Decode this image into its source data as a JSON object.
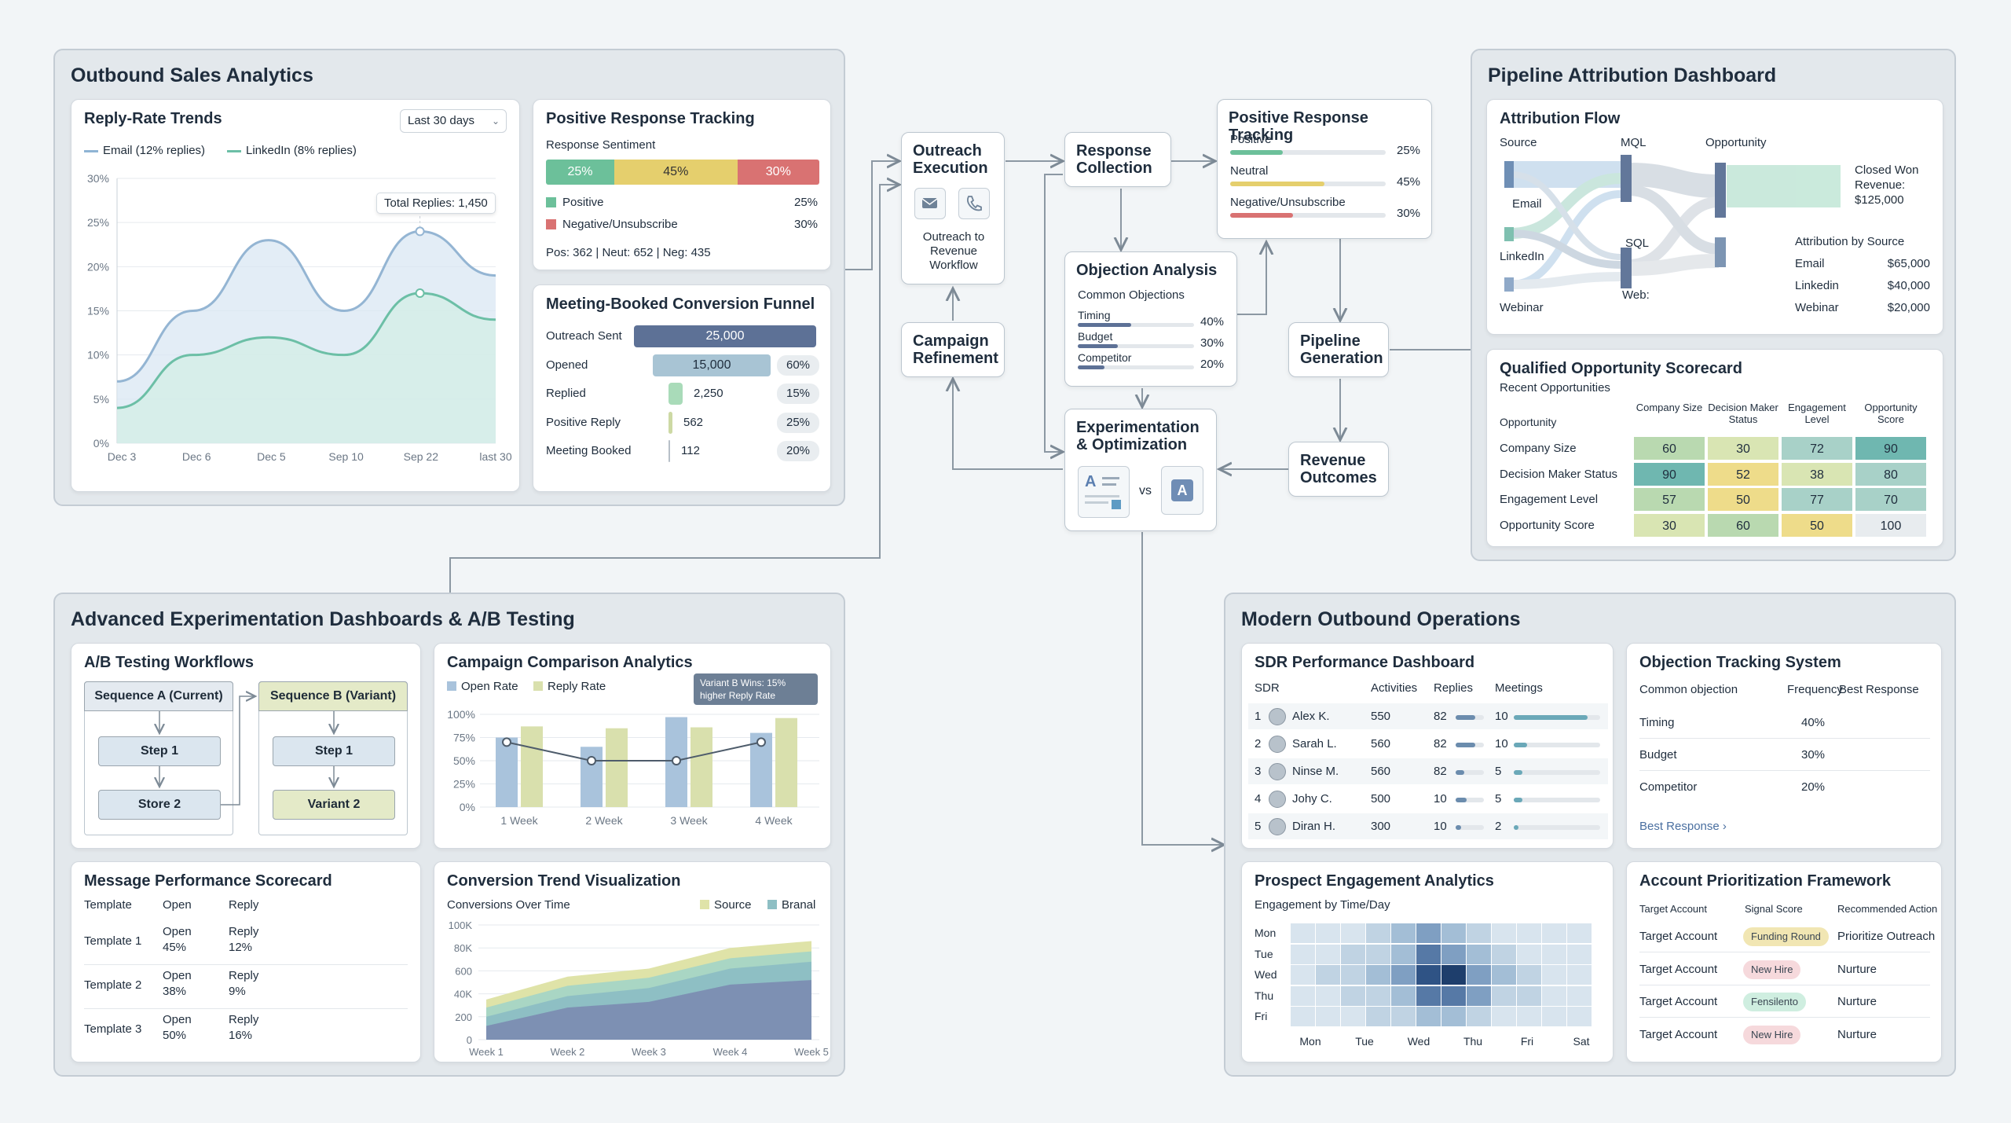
{
  "outbound": {
    "title": "Outbound Sales Analytics",
    "reply_trends": {
      "title": "Reply-Rate Trends",
      "range_select": "Last 30 days",
      "legend_email": "Email  (12% replies)",
      "legend_linkedin": "LinkedIn  (8% replies)",
      "tooltip": "Total Replies: 1,450",
      "y_ticks": [
        "30%",
        "25%",
        "20%",
        "15%",
        "10%",
        "5%",
        "0%"
      ],
      "x_ticks": [
        "Dec 3",
        "Dec 6",
        "Dec 5",
        "Sep 10",
        "Sep 22",
        "last 30"
      ]
    },
    "positive_tracking": {
      "title": "Positive Response Tracking",
      "subtitle": "Response Sentiment",
      "seg1": "25%",
      "seg2": "45%",
      "seg3": "30%",
      "legend1_label": "Positive",
      "legend1_value": "25%",
      "legend2_label": "Negative/Unsubscribe",
      "legend2_value": "30%",
      "counts": "Pos: 362 | Neut: 652 | Neg: 435"
    },
    "funnel": {
      "title": "Meeting-Booked Conversion Funnel",
      "rows": [
        {
          "label": "Outreach Sent",
          "value": "25,000",
          "pct": ""
        },
        {
          "label": "Opened",
          "value": "15,000",
          "pct": "60%"
        },
        {
          "label": "Replied",
          "value": "2,250",
          "pct": "15%"
        },
        {
          "label": "Positive Reply",
          "value": "562",
          "pct": "25%"
        },
        {
          "label": "Meeting Booked",
          "value": "112",
          "pct": "20%"
        }
      ]
    }
  },
  "chart_data": [
    {
      "type": "area",
      "title": "Reply-Rate Trends",
      "x": [
        "Dec 3",
        "Dec 6",
        "Dec 5",
        "Sep 10",
        "Sep 22",
        "last 30"
      ],
      "ylim": [
        0,
        30
      ],
      "series": [
        {
          "name": "Email  (12% replies)",
          "values": [
            7,
            15,
            23,
            15,
            24,
            19
          ]
        },
        {
          "name": "LinkedIn  (8% replies)",
          "values": [
            4,
            10,
            12,
            10,
            17,
            14
          ]
        }
      ]
    },
    {
      "type": "bar",
      "title": "Campaign Comparison Analytics",
      "categories": [
        "1 Week",
        "2 Week",
        "3 Week",
        "4 Week"
      ],
      "ylim": [
        0,
        100
      ],
      "series": [
        {
          "name": "Open Rate",
          "values": [
            75,
            65,
            97,
            80
          ]
        },
        {
          "name": "Reply Rate",
          "values": [
            87,
            85,
            86,
            96
          ]
        }
      ],
      "line_values": [
        70,
        50,
        50,
        70
      ]
    },
    {
      "type": "area",
      "title": "Conversion Trend Visualization",
      "subtitle": "Conversions Over Time",
      "x": [
        "Week 1",
        "Week 2",
        "Week 3",
        "Week 4",
        "Week 5"
      ],
      "y_ticks": [
        "100K",
        "80K",
        "600",
        "40K",
        "200",
        "0"
      ],
      "series": [
        {
          "name": "Source",
          "values": [
            35,
            55,
            62,
            80,
            86
          ]
        },
        {
          "name": "Branal",
          "values": [
            25,
            45,
            52,
            70,
            76
          ]
        }
      ]
    }
  ],
  "flow": {
    "outreach_title": "Outreach Execution",
    "outreach_sub": "Outreach to Revenue Workflow",
    "response_title": "Response Collection",
    "positive_title": "Positive Response Tracking",
    "positive_rows": [
      {
        "label": "Positive",
        "value": "25%",
        "pct": 25,
        "color": "#6cc09a"
      },
      {
        "label": "Neutral",
        "value": "45%",
        "pct": 45,
        "color": "#e5cf6d"
      },
      {
        "label": "Negative/Unsubscribe",
        "value": "30%",
        "pct": 30,
        "color": "#d97272"
      }
    ],
    "objection_title": "Objection Analysis",
    "objection_sub": "Common Objections",
    "objection_rows": [
      {
        "label": "Timing",
        "value": "40%",
        "pct": 40
      },
      {
        "label": "Budget",
        "value": "30%",
        "pct": 30
      },
      {
        "label": "Competitor",
        "value": "20%",
        "pct": 20
      }
    ],
    "pipeline_title": "Pipeline Generation",
    "campaign_title": "Campaign Refinement",
    "experiment_title": "Experimentation & Optimization",
    "vs": "vs",
    "revenue_title": "Revenue Outcomes"
  },
  "attribution": {
    "title": "Pipeline Attribution Dashboard",
    "flow": {
      "title": "Attribution Flow",
      "source": "Source",
      "mql": "MQL",
      "opportunity": "Opportunity",
      "email": "Email",
      "linkedin": "LinkedIn",
      "webinar": "Webinar",
      "sql": "SQL",
      "web": "Web:",
      "closed": "Closed Won Revenue: $125,000",
      "by_source_title": "Attribution by Source",
      "by_source": [
        {
          "label": "Email",
          "value": "$65,000"
        },
        {
          "label": "Linkedin",
          "value": "$40,000"
        },
        {
          "label": "Webinar",
          "value": "$20,000"
        }
      ]
    },
    "scorecard": {
      "title": "Qualified Opportunity Scorecard",
      "subtitle": "Recent Opportunities",
      "col0": "Opportunity",
      "cols": [
        "Company Size",
        "Decision Maker Status",
        "Engagement Level",
        "Opportunity Score"
      ],
      "rows": [
        {
          "label": "Company Size",
          "cells": [
            "60",
            "30",
            "72",
            "90"
          ]
        },
        {
          "label": "Decision Maker Status",
          "cells": [
            "90",
            "52",
            "38",
            "80"
          ]
        },
        {
          "label": "Engagement Level",
          "cells": [
            "57",
            "50",
            "77",
            "70"
          ]
        },
        {
          "label": "Opportunity Score",
          "cells": [
            "30",
            "60",
            "50",
            "100"
          ]
        }
      ]
    }
  },
  "experimentation": {
    "title": "Advanced Experimentation Dashboards & A/B Testing",
    "ab": {
      "title": "A/B Testing Workflows",
      "seq_a": "Sequence A (Current)",
      "seq_b": "Sequence B (Variant)",
      "a_step1": "Step 1",
      "a_step2": "Store 2",
      "b_step1": "Step 1",
      "b_step2": "Variant 2"
    },
    "campaign": {
      "title": "Campaign Comparison Analytics",
      "legend_open": "Open Rate",
      "legend_reply": "Reply Rate",
      "callout": "Variant B Wins: 15% higher Reply Rate",
      "y_ticks": [
        "100%",
        "75%",
        "50%",
        "25%",
        "0%"
      ]
    },
    "message": {
      "title": "Message Performance Scorecard",
      "headers": [
        "Template",
        "Open",
        "Reply"
      ],
      "rows": [
        {
          "template": "Template 1",
          "open_l": "Open",
          "open_v": "45%",
          "reply_l": "Reply",
          "reply_v": "12%"
        },
        {
          "template": "Template 2",
          "open_l": "Open",
          "open_v": "38%",
          "reply_l": "Reply",
          "reply_v": "9%"
        },
        {
          "template": "Template 3",
          "open_l": "Open",
          "open_v": "50%",
          "reply_l": "Reply",
          "reply_v": "16%"
        }
      ]
    },
    "conversion": {
      "title": "Conversion Trend Visualization",
      "subtitle": "Conversions Over Time",
      "legend_source": "Source",
      "legend_branal": "Branal"
    }
  },
  "modern": {
    "title": "Modern Outbound Operations",
    "sdr": {
      "title": "SDR Performance Dashboard",
      "headers": [
        "SDR",
        "Activities",
        "Replies",
        "Meetings"
      ],
      "rows": [
        {
          "rank": "1",
          "name": "Alex K.",
          "activities": "550",
          "replies": "82",
          "reply_pct": 35,
          "meetings": "10",
          "meet_pct": 85
        },
        {
          "rank": "2",
          "name": "Sarah L.",
          "activities": "560",
          "replies": "82",
          "reply_pct": 35,
          "meetings": "10",
          "meet_pct": 15
        },
        {
          "rank": "3",
          "name": "Ninse M.",
          "activities": "560",
          "replies": "82",
          "reply_pct": 15,
          "meetings": "5",
          "meet_pct": 10
        },
        {
          "rank": "4",
          "name": "Johy C.",
          "activities": "500",
          "replies": "10",
          "reply_pct": 20,
          "meetings": "5",
          "meet_pct": 10
        },
        {
          "rank": "5",
          "name": "Diran H.",
          "activities": "300",
          "replies": "10",
          "reply_pct": 10,
          "meetings": "2",
          "meet_pct": 5
        }
      ]
    },
    "objection_tracking": {
      "title": "Objection Tracking System",
      "headers": [
        "Common objection",
        "Frequency",
        "Best Response"
      ],
      "rows": [
        {
          "label": "Timing",
          "value": "40%"
        },
        {
          "label": "Budget",
          "value": "30%"
        },
        {
          "label": "Competitor",
          "value": "20%"
        }
      ],
      "link": "Best Response ›"
    },
    "engagement": {
      "title": "Prospect Engagement Analytics",
      "subtitle": "Engagement by Time/Day",
      "rows_labels": [
        "Mon",
        "Tue",
        "Wed",
        "Thu",
        "Fri"
      ],
      "cols_labels": [
        "Mon",
        "Tue",
        "Wed",
        "Thu",
        "Fri",
        "Sat"
      ]
    },
    "prioritization": {
      "title": "Account Prioritization Framework",
      "headers": [
        "Target Account",
        "Signal Score",
        "Recommended Action"
      ],
      "rows": [
        {
          "account": "Target Account",
          "signal": "Funding Round",
          "action": "Prioritize Outreach",
          "color": "#f1e6b3"
        },
        {
          "account": "Target Account",
          "signal": "New Hire",
          "action": "Nurture",
          "color": "#f6d9dc"
        },
        {
          "account": "Target Account",
          "signal": "Fensilento",
          "action": "Nurture",
          "color": "#cfeee0"
        },
        {
          "account": "Target Account",
          "signal": "New Hire",
          "action": "Nurture",
          "color": "#f6d9dc"
        }
      ]
    }
  },
  "colors": {
    "green": "#6cc09a",
    "yellow": "#e5cf6d",
    "red": "#d97272",
    "navy": "#5b6f90",
    "blue": "#a9c3d6"
  }
}
